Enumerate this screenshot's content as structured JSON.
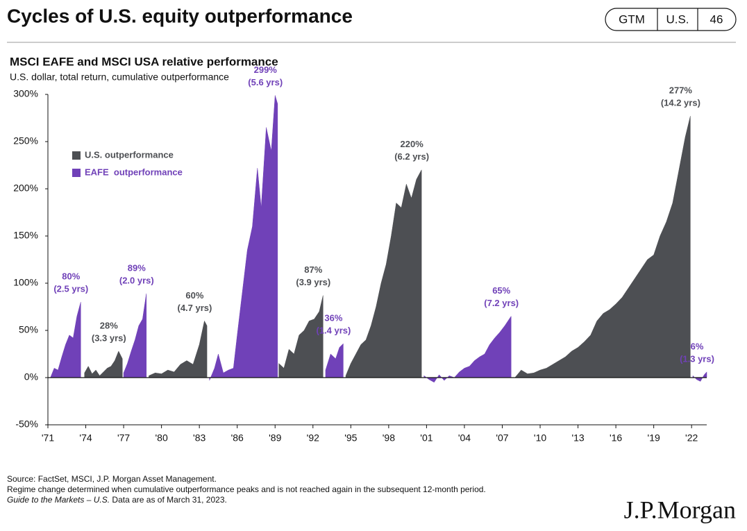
{
  "header": {
    "title": "Cycles of U.S. equity outperformance",
    "badges": [
      "GTM",
      "U.S.",
      "46"
    ]
  },
  "chart_data": {
    "type": "area",
    "title": "MSCI EAFE and MSCI USA relative performance",
    "subtitle": "U.S. dollar, total return, cumulative outperformance",
    "xlim": [
      1971,
      2023.2
    ],
    "xticks": [
      {
        "value": 1971,
        "label": "'71"
      },
      {
        "value": 1974,
        "label": "'74"
      },
      {
        "value": 1977,
        "label": "'77"
      },
      {
        "value": 1980,
        "label": "'80"
      },
      {
        "value": 1983,
        "label": "'83"
      },
      {
        "value": 1986,
        "label": "'86"
      },
      {
        "value": 1989,
        "label": "'89"
      },
      {
        "value": 1992,
        "label": "'92"
      },
      {
        "value": 1995,
        "label": "'95"
      },
      {
        "value": 1998,
        "label": "'98"
      },
      {
        "value": 2001,
        "label": "'01"
      },
      {
        "value": 2004,
        "label": "'04"
      },
      {
        "value": 2007,
        "label": "'07"
      },
      {
        "value": 2010,
        "label": "'10"
      },
      {
        "value": 2013,
        "label": "'13"
      },
      {
        "value": 2016,
        "label": "'16"
      },
      {
        "value": 2019,
        "label": "'19"
      },
      {
        "value": 2022,
        "label": "'22"
      }
    ],
    "ylim": [
      -50,
      300
    ],
    "yticks": [
      {
        "value": -50,
        "label": "-50%"
      },
      {
        "value": 0,
        "label": "0%"
      },
      {
        "value": 50,
        "label": "50%"
      },
      {
        "value": 100,
        "label": "100%"
      },
      {
        "value": 150,
        "label": "150%"
      },
      {
        "value": 200,
        "label": "200%"
      },
      {
        "value": 250,
        "label": "250%"
      },
      {
        "value": 300,
        "label": "300%"
      }
    ],
    "grid": false,
    "legend": "upper left",
    "series": [
      {
        "name": "U.S. outperformance",
        "color": "#4d4f53",
        "x": [
          1973.9,
          1974.2,
          1974.5,
          1974.8,
          1975.1,
          1975.4,
          1975.7,
          1976.0,
          1976.3,
          1976.6,
          1976.9,
          1977.0,
          1979.0,
          1979.5,
          1980.0,
          1980.5,
          1981.0,
          1981.5,
          1982.0,
          1982.5,
          1983.0,
          1983.4,
          1983.6,
          1983.7,
          1989.3,
          1989.7,
          1990.1,
          1990.5,
          1990.9,
          1991.3,
          1991.7,
          1992.1,
          1992.5,
          1992.8,
          1992.9,
          1994.6,
          1995.0,
          1995.4,
          1995.8,
          1996.2,
          1996.6,
          1997.0,
          1997.4,
          1997.8,
          1998.2,
          1998.6,
          1999.0,
          1999.4,
          1999.8,
          2000.2,
          2000.6,
          2000.7,
          2008.0,
          2008.5,
          2009.0,
          2009.5,
          2010.0,
          2010.5,
          2011.0,
          2011.5,
          2012.0,
          2012.5,
          2013.0,
          2013.5,
          2014.0,
          2014.5,
          2015.0,
          2015.5,
          2016.0,
          2016.5,
          2017.0,
          2017.5,
          2018.0,
          2018.5,
          2019.0,
          2019.5,
          2020.0,
          2020.5,
          2021.0,
          2021.5,
          2021.9
        ],
        "values": [
          5,
          12,
          4,
          8,
          2,
          6,
          10,
          12,
          18,
          28,
          20,
          null,
          2,
          5,
          4,
          8,
          6,
          14,
          18,
          14,
          35,
          60,
          55,
          null,
          15,
          10,
          30,
          25,
          45,
          50,
          60,
          62,
          70,
          87,
          null,
          2,
          15,
          25,
          35,
          40,
          55,
          75,
          100,
          120,
          150,
          185,
          180,
          205,
          190,
          210,
          220,
          null,
          0,
          8,
          4,
          5,
          8,
          10,
          14,
          18,
          22,
          28,
          32,
          38,
          45,
          60,
          68,
          72,
          78,
          85,
          95,
          105,
          115,
          125,
          130,
          150,
          165,
          185,
          220,
          255,
          277
        ]
      },
      {
        "name": "EAFE  outperformance",
        "color": "#7041b8",
        "x": [
          1971.2,
          1971.5,
          1971.8,
          1972.1,
          1972.4,
          1972.7,
          1973.0,
          1973.3,
          1973.6,
          1973.7,
          1977.0,
          1977.3,
          1977.6,
          1977.9,
          1978.2,
          1978.5,
          1978.8,
          1978.9,
          1983.8,
          1984.2,
          1984.5,
          1984.9,
          1985.3,
          1985.7,
          1986.0,
          1986.4,
          1986.8,
          1987.2,
          1987.6,
          1987.9,
          1988.3,
          1988.7,
          1989.0,
          1989.2,
          1989.25,
          1993.0,
          1993.4,
          1993.8,
          1994.1,
          1994.4,
          1994.5,
          2000.8,
          2001.2,
          2001.6,
          2002.0,
          2002.4,
          2002.8,
          2003.2,
          2003.6,
          2004.0,
          2004.4,
          2004.8,
          2005.2,
          2005.6,
          2006.0,
          2006.4,
          2006.8,
          2007.2,
          2007.7,
          2007.8,
          2022.1,
          2022.4,
          2022.7,
          2023.0,
          2023.2
        ],
        "values": [
          0,
          10,
          8,
          22,
          35,
          45,
          42,
          65,
          80,
          null,
          5,
          15,
          28,
          40,
          55,
          62,
          89,
          null,
          -3,
          10,
          25,
          5,
          8,
          10,
          45,
          90,
          135,
          160,
          222,
          180,
          265,
          240,
          299,
          290,
          null,
          8,
          25,
          20,
          32,
          36,
          null,
          2,
          -2,
          -5,
          3,
          -3,
          2,
          0,
          6,
          10,
          12,
          18,
          22,
          25,
          35,
          42,
          48,
          55,
          65,
          null,
          2,
          -2,
          -4,
          3,
          6
        ]
      }
    ],
    "peaks": [
      {
        "series": "EAFE  outperformance",
        "x": 1973.6,
        "value": 80,
        "label": "80%",
        "duration": "(2.5 yrs)"
      },
      {
        "series": "U.S. outperformance",
        "x": 1976.6,
        "value": 28,
        "label": "28%",
        "duration": "(3.3 yrs)"
      },
      {
        "series": "EAFE  outperformance",
        "x": 1978.8,
        "value": 89,
        "label": "89%",
        "duration": "(2.0 yrs)"
      },
      {
        "series": "U.S. outperformance",
        "x": 1983.4,
        "value": 60,
        "label": "60%",
        "duration": "(4.7 yrs)"
      },
      {
        "series": "EAFE  outperformance",
        "x": 1989.0,
        "value": 299,
        "label": "299%",
        "duration": "(5.6 yrs)"
      },
      {
        "series": "U.S. outperformance",
        "x": 1992.8,
        "value": 87,
        "label": "87%",
        "duration": "(3.9 yrs)"
      },
      {
        "series": "EAFE  outperformance",
        "x": 1994.4,
        "value": 36,
        "label": "36%",
        "duration": "(1.4 yrs)"
      },
      {
        "series": "U.S. outperformance",
        "x": 2000.6,
        "value": 220,
        "label": "220%",
        "duration": "(6.2 yrs)"
      },
      {
        "series": "EAFE  outperformance",
        "x": 2007.7,
        "value": 65,
        "label": "65%",
        "duration": "(7.2 yrs)"
      },
      {
        "series": "U.S. outperformance",
        "x": 2021.9,
        "value": 277,
        "label": "277%",
        "duration": "(14.2 yrs)"
      },
      {
        "series": "EAFE  outperformance",
        "x": 2023.2,
        "value": 6,
        "label": "6%",
        "duration": "(1.3 yrs)"
      }
    ]
  },
  "footer": {
    "source": "Source: FactSet, MSCI, J.P. Morgan Asset Management.",
    "note": "Regime change determined when cumulative outperformance peaks and is not reached again in the subsequent 12-month period.",
    "guide": "Guide to the Markets – U.S.",
    "asof": " Data are as of March 31, 2023.",
    "logo": "J.P.Morgan"
  }
}
